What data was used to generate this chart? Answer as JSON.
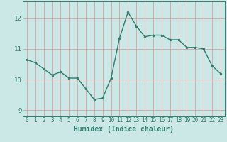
{
  "x": [
    0,
    1,
    2,
    3,
    4,
    5,
    6,
    7,
    8,
    9,
    10,
    11,
    12,
    13,
    14,
    15,
    16,
    17,
    18,
    19,
    20,
    21,
    22,
    23
  ],
  "y": [
    10.65,
    10.55,
    10.35,
    10.15,
    10.25,
    10.05,
    10.05,
    9.7,
    9.35,
    9.4,
    10.05,
    11.35,
    12.2,
    11.75,
    11.4,
    11.45,
    11.45,
    11.3,
    11.3,
    11.05,
    11.05,
    11.0,
    10.45,
    10.2
  ],
  "xlabel": "Humidex (Indice chaleur)",
  "ylim": [
    8.8,
    12.55
  ],
  "xlim": [
    -0.5,
    23.5
  ],
  "yticks": [
    9,
    10,
    11,
    12
  ],
  "xticks": [
    0,
    1,
    2,
    3,
    4,
    5,
    6,
    7,
    8,
    9,
    10,
    11,
    12,
    13,
    14,
    15,
    16,
    17,
    18,
    19,
    20,
    21,
    22,
    23
  ],
  "line_color": "#2e7d6e",
  "bg_color": "#cce8e6",
  "grid_color": "#d9a0a0",
  "label_color": "#2e7d6e",
  "marker_size": 2.0,
  "line_width": 1.0,
  "xlabel_fontsize": 7,
  "tick_fontsize": 6.5,
  "xtick_fontsize": 5.5
}
